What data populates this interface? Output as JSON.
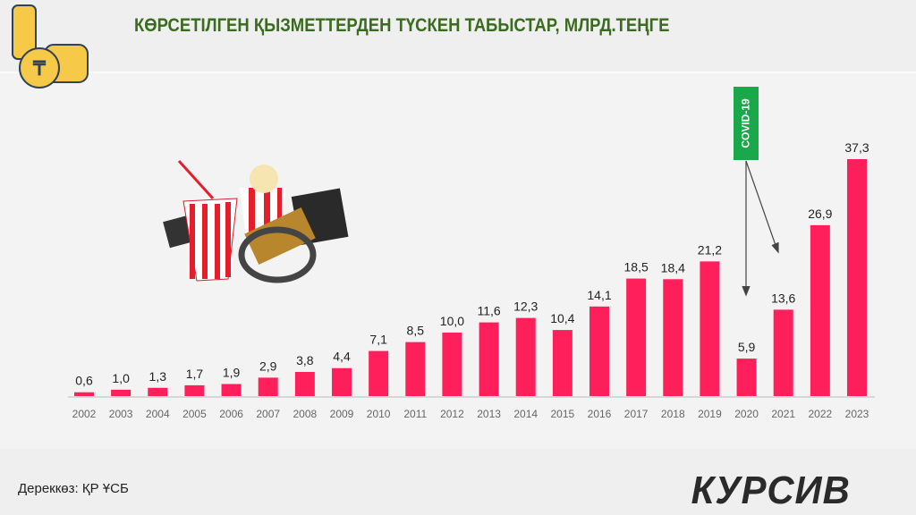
{
  "title": "КӨРСЕТІЛГЕН ҚЫЗМЕТТЕРДЕН ТҮСКЕН ТАБЫСТАР, МЛРД.ТЕҢГЕ",
  "source": "Дереккөз:  ҚР ҰСБ",
  "logo": "КУРСИВ",
  "annotation": "COVID-19",
  "colors": {
    "bar": "#ff1f5a",
    "title": "#3a6b1e",
    "covid": "#1aa84b"
  },
  "chart_data": {
    "type": "bar",
    "title": "КӨРСЕТІЛГЕН ҚЫЗМЕТТЕРДЕН ТҮСКЕН ТАБЫСТАР, МЛРД.ТЕҢГЕ",
    "categories": [
      "2002",
      "2003",
      "2004",
      "2005",
      "2006",
      "2007",
      "2008",
      "2009",
      "2010",
      "2011",
      "2012",
      "2013",
      "2014",
      "2015",
      "2016",
      "2017",
      "2018",
      "2019",
      "2020",
      "2021",
      "2022",
      "2023"
    ],
    "values": [
      0.6,
      1.0,
      1.3,
      1.7,
      1.9,
      2.9,
      3.8,
      4.4,
      7.1,
      8.5,
      10.0,
      11.6,
      12.3,
      10.4,
      14.1,
      18.5,
      18.4,
      21.2,
      5.9,
      13.6,
      26.9,
      37.3
    ],
    "labels": [
      "0,6",
      "1,0",
      "1,3",
      "1,7",
      "1,9",
      "2,9",
      "3,8",
      "4,4",
      "7,1",
      "8,5",
      "10,0",
      "11,6",
      "12,3",
      "10,4",
      "14,1",
      "18,5",
      "18,4",
      "21,2",
      "5,9",
      "13,6",
      "26,9",
      "37,3"
    ],
    "ylim": [
      0,
      37.3
    ],
    "xlabel": "",
    "ylabel": "",
    "grid": false
  }
}
